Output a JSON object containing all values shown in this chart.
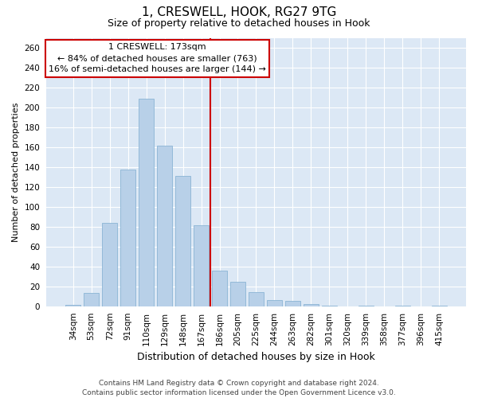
{
  "title": "1, CRESWELL, HOOK, RG27 9TG",
  "subtitle": "Size of property relative to detached houses in Hook",
  "xlabel": "Distribution of detached houses by size in Hook",
  "ylabel": "Number of detached properties",
  "categories": [
    "34sqm",
    "53sqm",
    "72sqm",
    "91sqm",
    "110sqm",
    "129sqm",
    "148sqm",
    "167sqm",
    "186sqm",
    "205sqm",
    "225sqm",
    "244sqm",
    "263sqm",
    "282sqm",
    "301sqm",
    "320sqm",
    "339sqm",
    "358sqm",
    "377sqm",
    "396sqm",
    "415sqm"
  ],
  "values": [
    2,
    14,
    84,
    138,
    209,
    162,
    131,
    82,
    36,
    25,
    15,
    7,
    6,
    3,
    1,
    0,
    1,
    0,
    1,
    0,
    1
  ],
  "bar_color": "#b8d0e8",
  "bar_edge_color": "#8ab4d4",
  "vline_index": 7,
  "vline_color": "#cc0000",
  "annotation_line1": "1 CRESWELL: 173sqm",
  "annotation_line2": "← 84% of detached houses are smaller (763)",
  "annotation_line3": "16% of semi-detached houses are larger (144) →",
  "annotation_box_color": "#ffffff",
  "annotation_box_edge_color": "#cc0000",
  "ylim": [
    0,
    270
  ],
  "yticks": [
    0,
    20,
    40,
    60,
    80,
    100,
    120,
    140,
    160,
    180,
    200,
    220,
    240,
    260
  ],
  "bg_color": "#dce8f5",
  "grid_color": "#ffffff",
  "footer_text": "Contains HM Land Registry data © Crown copyright and database right 2024.\nContains public sector information licensed under the Open Government Licence v3.0.",
  "title_fontsize": 11,
  "subtitle_fontsize": 9,
  "ylabel_fontsize": 8,
  "xlabel_fontsize": 9,
  "tick_fontsize": 7.5,
  "annotation_fontsize": 8,
  "footer_fontsize": 6.5
}
